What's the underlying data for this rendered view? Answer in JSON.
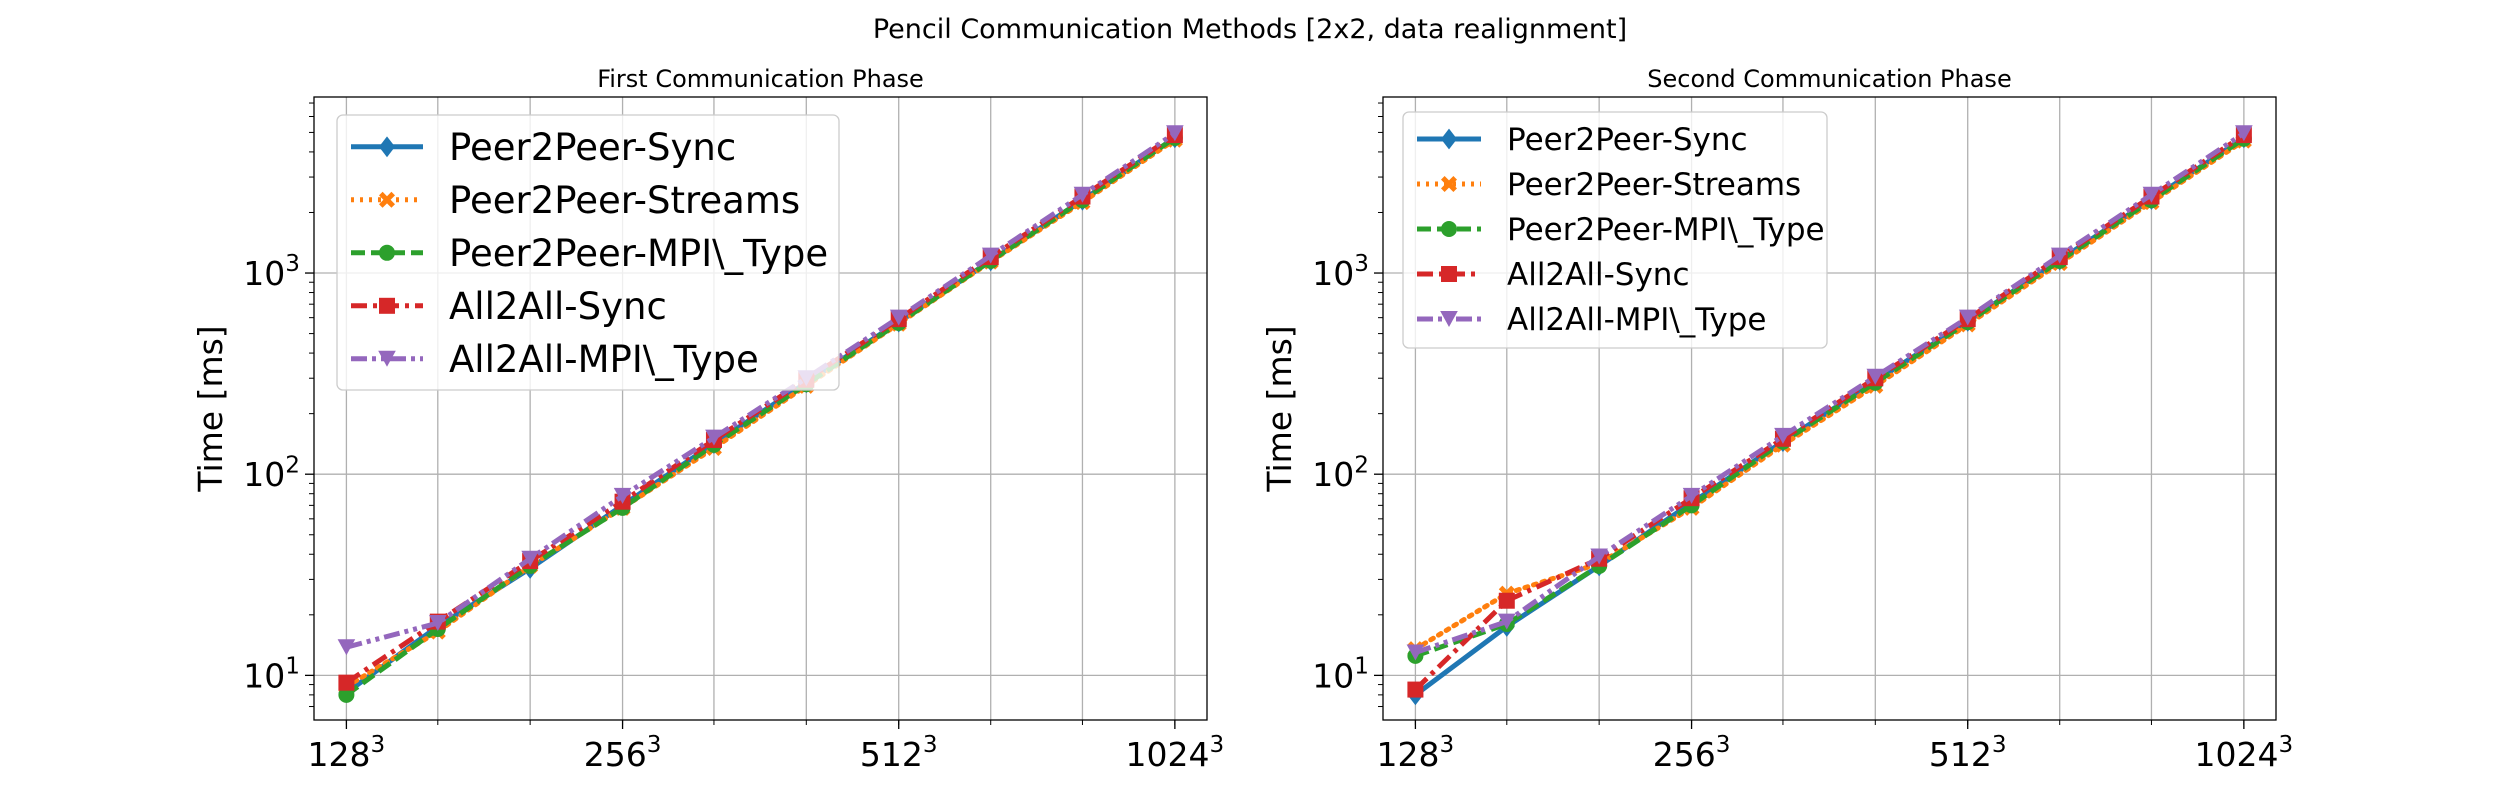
{
  "figure": {
    "title": "Pencil Communication Methods [2x2, data realignment]"
  },
  "styles": {
    "Peer2Peer-Sync": {
      "color": "#1f77b4",
      "dash": "",
      "marker": "diamond"
    },
    "Peer2Peer-Streams": {
      "color": "#ff7f0e",
      "dash": "dotted",
      "marker": "x"
    },
    "Peer2Peer-MPI\\_Type": {
      "color": "#2ca02c",
      "dash": "dashed",
      "marker": "circle"
    },
    "All2All-Sync": {
      "color": "#d62728",
      "dash": "dashdot",
      "marker": "square"
    },
    "All2All-MPI\\_Type": {
      "color": "#9467bd",
      "dash": "dashdotdot",
      "marker": "triangle-down"
    }
  },
  "chart_data": [
    {
      "type": "line",
      "title": "First Communication Phase",
      "xlabel": "",
      "ylabel": "Time [ms]",
      "x": [
        128,
        161,
        203,
        256,
        322,
        406,
        512,
        645,
        812,
        1024
      ],
      "xticks": [
        {
          "value": 128,
          "base": "128",
          "exp": "3"
        },
        {
          "value": 256,
          "base": "256",
          "exp": "3"
        },
        {
          "value": 512,
          "base": "512",
          "exp": "3"
        },
        {
          "value": 1024,
          "base": "1024",
          "exp": "3"
        }
      ],
      "yticks": [
        {
          "value": 10,
          "base": "10",
          "exp": "1"
        },
        {
          "value": 100,
          "base": "10",
          "exp": "2"
        },
        {
          "value": 1000,
          "base": "10",
          "exp": "3"
        }
      ],
      "ylim": [
        6,
        7500
      ],
      "xlim": [
        118,
        1110
      ],
      "yscale": "log",
      "legend": "upper-left",
      "series": [
        {
          "name": "Peer2Peer-Sync",
          "values": [
            8.2,
            17.5,
            34,
            70,
            142,
            285,
            570,
            1150,
            2300,
            4700
          ]
        },
        {
          "name": "Peer2Peer-Streams",
          "values": [
            8.8,
            16.5,
            35,
            68,
            135,
            275,
            560,
            1140,
            2250,
            4600
          ]
        },
        {
          "name": "Peer2Peer-MPI\\_Type",
          "values": [
            8.0,
            17.0,
            35,
            68,
            140,
            280,
            565,
            1150,
            2300,
            4700
          ]
        },
        {
          "name": "All2All-Sync",
          "values": [
            9.2,
            18.5,
            37,
            73,
            148,
            295,
            590,
            1200,
            2400,
            4850
          ]
        },
        {
          "name": "All2All-MPI\\_Type",
          "values": [
            13.8,
            18.2,
            38,
            78,
            152,
            300,
            600,
            1220,
            2450,
            4950
          ]
        }
      ]
    },
    {
      "type": "line",
      "title": "Second Communication Phase",
      "xlabel": "",
      "ylabel": "Time [ms]",
      "x": [
        128,
        161,
        203,
        256,
        322,
        406,
        512,
        645,
        812,
        1024
      ],
      "xticks": [
        {
          "value": 128,
          "base": "128",
          "exp": "3"
        },
        {
          "value": 256,
          "base": "256",
          "exp": "3"
        },
        {
          "value": 512,
          "base": "512",
          "exp": "3"
        },
        {
          "value": 1024,
          "base": "1024",
          "exp": "3"
        }
      ],
      "yticks": [
        {
          "value": 10,
          "base": "10",
          "exp": "1"
        },
        {
          "value": 100,
          "base": "10",
          "exp": "2"
        },
        {
          "value": 1000,
          "base": "10",
          "exp": "3"
        }
      ],
      "ylim": [
        6,
        7500
      ],
      "xlim": [
        118,
        1110
      ],
      "yscale": "log",
      "legend": "upper-left",
      "series": [
        {
          "name": "Peer2Peer-Sync",
          "values": [
            8.0,
            17.5,
            35,
            72,
            145,
            290,
            575,
            1160,
            2320,
            4700
          ]
        },
        {
          "name": "Peer2Peer-Streams",
          "values": [
            13.5,
            25.5,
            36,
            68,
            140,
            275,
            555,
            1120,
            2250,
            4550
          ]
        },
        {
          "name": "Peer2Peer-MPI\\_Type",
          "values": [
            12.5,
            18.0,
            35,
            70,
            145,
            285,
            570,
            1150,
            2300,
            4650
          ]
        },
        {
          "name": "All2All-Sync",
          "values": [
            8.5,
            23.5,
            38,
            76,
            150,
            300,
            590,
            1200,
            2400,
            4850
          ]
        },
        {
          "name": "All2All-MPI\\_Type",
          "values": [
            13.0,
            18.5,
            39,
            78,
            155,
            305,
            600,
            1220,
            2450,
            4950
          ]
        }
      ]
    }
  ]
}
